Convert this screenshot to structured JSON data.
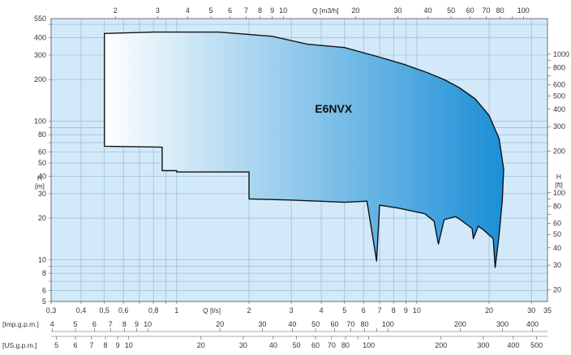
{
  "chart_data": {
    "type": "area",
    "title": "",
    "series_label": "E6NVX",
    "x_scale": "log",
    "y_scale": "log",
    "colors": {
      "plot_bg": "#d2e9fa",
      "grid": "#8fb3cd",
      "frame": "#555555",
      "fill_start": "#ffffff",
      "fill_end": "#1b8fd6",
      "outline": "#111111"
    },
    "axes": {
      "bottom_flow": {
        "label": "Q [l/s]",
        "unit": "l/s",
        "range": [
          0.3,
          35
        ],
        "tick_labels": [
          {
            "v": 0.3,
            "t": "0,3"
          },
          {
            "v": 0.4,
            "t": "0,4"
          },
          {
            "v": 0.5,
            "t": "0,5"
          },
          {
            "v": 0.6,
            "t": "0,6"
          },
          {
            "v": 0.8,
            "t": "0,8"
          },
          {
            "v": 1,
            "t": "1"
          },
          {
            "v": 2,
            "t": "2"
          },
          {
            "v": 3,
            "t": "3"
          },
          {
            "v": 4,
            "t": "4"
          },
          {
            "v": 5,
            "t": "5"
          },
          {
            "v": 6,
            "t": "6"
          },
          {
            "v": 7,
            "t": "7"
          },
          {
            "v": 8,
            "t": "8"
          },
          {
            "v": 9,
            "t": "9"
          },
          {
            "v": 10,
            "t": "10"
          },
          {
            "v": 20,
            "t": "20"
          },
          {
            "v": 30,
            "t": "30"
          },
          {
            "v": 35,
            "t": "35"
          }
        ]
      },
      "top_flow": {
        "label": "Q [m3/h]",
        "unit": "m3/h",
        "range": [
          1.08,
          126
        ],
        "tick_labels": [
          {
            "v": 2,
            "t": "2"
          },
          {
            "v": 3,
            "t": "3"
          },
          {
            "v": 4,
            "t": "4"
          },
          {
            "v": 5,
            "t": "5"
          },
          {
            "v": 6,
            "t": "6"
          },
          {
            "v": 7,
            "t": "7"
          },
          {
            "v": 8,
            "t": "8"
          },
          {
            "v": 9,
            "t": "9"
          },
          {
            "v": 10,
            "t": "10"
          },
          {
            "v": 20,
            "t": "20"
          },
          {
            "v": 30,
            "t": "30"
          },
          {
            "v": 40,
            "t": "40"
          },
          {
            "v": 50,
            "t": "50"
          },
          {
            "v": 60,
            "t": "60"
          },
          {
            "v": 70,
            "t": "70"
          },
          {
            "v": 80,
            "t": "80"
          },
          {
            "v": 100,
            "t": "100"
          }
        ]
      },
      "imp_gpm": {
        "label": "[Imp.g.p.m.]",
        "unit": "Imp.g.p.m.",
        "range": [
          3.96,
          462
        ],
        "tick_labels": [
          {
            "v": 4,
            "t": "4"
          },
          {
            "v": 5,
            "t": "5"
          },
          {
            "v": 6,
            "t": "6"
          },
          {
            "v": 7,
            "t": "7"
          },
          {
            "v": 8,
            "t": "8"
          },
          {
            "v": 9,
            "t": "9"
          },
          {
            "v": 10,
            "t": "10"
          },
          {
            "v": 20,
            "t": "20"
          },
          {
            "v": 30,
            "t": "30"
          },
          {
            "v": 40,
            "t": "40"
          },
          {
            "v": 50,
            "t": "50"
          },
          {
            "v": 60,
            "t": "60"
          },
          {
            "v": 70,
            "t": "70"
          },
          {
            "v": 80,
            "t": "80"
          },
          {
            "v": 100,
            "t": "100"
          },
          {
            "v": 200,
            "t": "200"
          },
          {
            "v": 300,
            "t": "300"
          },
          {
            "v": 400,
            "t": "400"
          }
        ]
      },
      "us_gpm": {
        "label": "[US.g.p.m.]",
        "unit": "US.g.p.m.",
        "range": [
          4.75,
          555
        ],
        "tick_labels": [
          {
            "v": 5,
            "t": "5"
          },
          {
            "v": 6,
            "t": "6"
          },
          {
            "v": 7,
            "t": "7"
          },
          {
            "v": 8,
            "t": "8"
          },
          {
            "v": 9,
            "t": "9"
          },
          {
            "v": 10,
            "t": "10"
          },
          {
            "v": 20,
            "t": "20"
          },
          {
            "v": 30,
            "t": "30"
          },
          {
            "v": 40,
            "t": "40"
          },
          {
            "v": 50,
            "t": "50"
          },
          {
            "v": 60,
            "t": "60"
          },
          {
            "v": 70,
            "t": "70"
          },
          {
            "v": 80,
            "t": "80"
          },
          {
            "v": 100,
            "t": "100"
          },
          {
            "v": 200,
            "t": "200"
          },
          {
            "v": 300,
            "t": "300"
          },
          {
            "v": 400,
            "t": "400"
          },
          {
            "v": 500,
            "t": "500"
          }
        ]
      },
      "left_head": {
        "label_top": "H",
        "label_bottom": "[m]",
        "unit": "m",
        "range": [
          5,
          550
        ],
        "tick_labels": [
          {
            "v": 5,
            "t": "5"
          },
          {
            "v": 6,
            "t": "6"
          },
          {
            "v": 8,
            "t": "8"
          },
          {
            "v": 10,
            "t": "10"
          },
          {
            "v": 20,
            "t": "20"
          },
          {
            "v": 30,
            "t": "30"
          },
          {
            "v": 40,
            "t": "40"
          },
          {
            "v": 50,
            "t": "50"
          },
          {
            "v": 60,
            "t": "60"
          },
          {
            "v": 80,
            "t": "80"
          },
          {
            "v": 100,
            "t": "100"
          },
          {
            "v": 200,
            "t": "200"
          },
          {
            "v": 300,
            "t": "300"
          },
          {
            "v": 400,
            "t": "400"
          },
          {
            "v": 550,
            "t": "550"
          }
        ]
      },
      "right_head": {
        "label_top": "H",
        "label_bottom": "[ft]",
        "unit": "ft",
        "range": [
          16.4,
          1804
        ],
        "tick_labels": [
          {
            "v": 20,
            "t": "20"
          },
          {
            "v": 30,
            "t": "30"
          },
          {
            "v": 40,
            "t": "40"
          },
          {
            "v": 50,
            "t": "50"
          },
          {
            "v": 60,
            "t": "60"
          },
          {
            "v": 80,
            "t": "80"
          },
          {
            "v": 100,
            "t": "100"
          },
          {
            "v": 200,
            "t": "200"
          },
          {
            "v": 300,
            "t": "300"
          },
          {
            "v": 400,
            "t": "400"
          },
          {
            "v": 500,
            "t": "500"
          },
          {
            "v": 600,
            "t": "600"
          },
          {
            "v": 800,
            "t": "800"
          },
          {
            "v": 1000,
            "t": "1000"
          }
        ]
      }
    },
    "envelope": {
      "x_unit": "l/s",
      "y_unit": "m",
      "points": [
        [
          0.5,
          430
        ],
        [
          0.8,
          440
        ],
        [
          1.5,
          440
        ],
        [
          2.5,
          410
        ],
        [
          3.5,
          360
        ],
        [
          5.0,
          340
        ],
        [
          7.0,
          290
        ],
        [
          9.0,
          255
        ],
        [
          11.0,
          225
        ],
        [
          13.0,
          200
        ],
        [
          15.0,
          175
        ],
        [
          17.5,
          145
        ],
        [
          20.0,
          110
        ],
        [
          22.0,
          75
        ],
        [
          23.0,
          45
        ],
        [
          22.7,
          27
        ],
        [
          22.0,
          15
        ],
        [
          21.2,
          8.8
        ],
        [
          20.8,
          14.2
        ],
        [
          19.0,
          16.4
        ],
        [
          18.0,
          17.5
        ],
        [
          17.2,
          14.2
        ],
        [
          17.0,
          16.8
        ],
        [
          15.5,
          19.0
        ],
        [
          14.5,
          20.5
        ],
        [
          13.0,
          19.5
        ],
        [
          12.3,
          13.0
        ],
        [
          11.8,
          19.0
        ],
        [
          10.8,
          21.5
        ],
        [
          8.5,
          23.5
        ],
        [
          7.0,
          24.8
        ],
        [
          6.8,
          9.8
        ],
        [
          6.5,
          16.0
        ],
        [
          6.2,
          26.5
        ],
        [
          5.0,
          26.0
        ],
        [
          3.0,
          27.0
        ],
        [
          2.0,
          27.5
        ],
        [
          2.0,
          43.0
        ],
        [
          1.0,
          43.0
        ],
        [
          1.0,
          44.0
        ],
        [
          0.87,
          44.0
        ],
        [
          0.87,
          65.0
        ],
        [
          0.5,
          66.0
        ]
      ]
    }
  }
}
